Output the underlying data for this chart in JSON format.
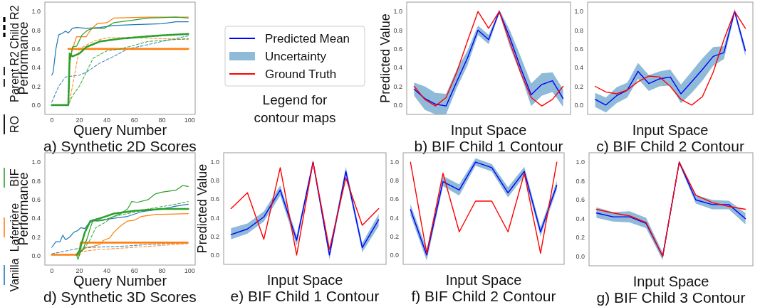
{
  "chart_data": [
    {
      "type": "line",
      "title": "a) Synthetic 2D Scores",
      "xlabel": "Query Number",
      "ylabel": "Performance",
      "xlim": [
        -5,
        104
      ],
      "ylim": [
        -0.1,
        1.1
      ],
      "xticks": [
        0,
        20,
        40,
        60,
        80,
        100
      ],
      "yticks": [
        {
          "value": 0,
          "label": "0.0"
        },
        {
          "value": 0.2,
          "label": "0.2"
        },
        {
          "value": 0.4,
          "label": "0.4"
        },
        {
          "value": 0.6,
          "label": "0.6"
        },
        {
          "value": 0.8,
          "label": "0.8"
        },
        {
          "value": 1,
          "label": "1.0"
        }
      ],
      "annotations": [
        "RO",
        "Parent R2",
        "Child R2"
      ],
      "series": [
        {
          "color": "#1f77b4",
          "line_style": "solid",
          "x": [
            0,
            1,
            3,
            5,
            8,
            10,
            12,
            15,
            18,
            25,
            35,
            45,
            60,
            80,
            90,
            99
          ],
          "values": [
            0.32,
            0.35,
            0.6,
            0.75,
            0.77,
            0.79,
            0.77,
            0.82,
            0.83,
            0.82,
            0.83,
            0.85,
            0.86,
            0.87,
            0.89,
            0.89
          ]
        },
        {
          "color": "#1f77b4",
          "line_style": "dashed",
          "x": [
            0,
            5,
            10,
            20,
            25,
            35,
            45,
            55,
            65,
            80,
            99
          ],
          "values": [
            0.03,
            0.2,
            0.3,
            0.32,
            0.35,
            0.45,
            0.52,
            0.6,
            0.63,
            0.68,
            0.74
          ]
        },
        {
          "color": "#ff7f0e",
          "line_style": "solid",
          "x": [
            0,
            12,
            13,
            15,
            18,
            25,
            28,
            33,
            40,
            45,
            70,
            99
          ],
          "values": [
            0,
            0,
            0.45,
            0.6,
            0.73,
            0.73,
            0.8,
            0.87,
            0.88,
            0.93,
            0.94,
            0.94
          ]
        },
        {
          "color": "#ff7f0e",
          "line_style": "dashed",
          "x": [
            13,
            15,
            20,
            30,
            40,
            60,
            99
          ],
          "values": [
            0.05,
            0.2,
            0.6,
            0.68,
            0.72,
            0.72,
            0.7
          ]
        },
        {
          "color": "#ff7f0e",
          "line_style": "dotted",
          "x": [
            12,
            99
          ],
          "values": [
            0.6,
            0.6
          ]
        },
        {
          "color": "#2ca02c",
          "line_style": "solid",
          "x": [
            0,
            12,
            13,
            15,
            18,
            22,
            26,
            30,
            38,
            45,
            55,
            70,
            90,
            99
          ],
          "values": [
            0,
            0,
            0.45,
            0.62,
            0.63,
            0.75,
            0.8,
            0.82,
            0.82,
            0.88,
            0.9,
            0.93,
            0.94,
            0.93
          ]
        },
        {
          "color": "#2ca02c",
          "line_style": "dashed",
          "x": [
            0,
            12,
            15,
            20,
            25,
            30,
            40,
            50,
            70,
            99
          ],
          "values": [
            0,
            0,
            0.1,
            0.2,
            0.35,
            0.5,
            0.58,
            0.6,
            0.68,
            0.71
          ]
        },
        {
          "color": "#2ca02c",
          "line_style": "dotted",
          "x": [
            0,
            12,
            13,
            15,
            20,
            25,
            35,
            50,
            75,
            99
          ],
          "values": [
            0,
            0,
            0.55,
            0.52,
            0.55,
            0.62,
            0.68,
            0.71,
            0.74,
            0.76
          ]
        }
      ]
    },
    {
      "type": "line",
      "title": "b) BIF Child 1 Contour",
      "xlabel": "Input Space",
      "ylabel": "Predicted Value",
      "legend": "left",
      "annotations": [
        "Uncertainty",
        "Legend for contour maps"
      ],
      "tick_labels": "y",
      "ylim": [
        -0.1,
        1.1
      ],
      "yticks": [
        {
          "value": 0,
          "label": "0.0"
        },
        {
          "value": 0.2,
          "label": "0.2"
        },
        {
          "value": 0.4,
          "label": "0.4"
        },
        {
          "value": 0.6,
          "label": "0.6"
        },
        {
          "value": 0.8,
          "label": "0.8"
        },
        {
          "value": 1,
          "label": "1.0"
        }
      ],
      "categories": [
        null,
        null,
        null,
        null,
        null,
        null,
        null,
        null,
        null,
        null,
        null,
        null,
        null,
        null,
        null
      ],
      "series": [
        {
          "name": "Predicted Mean",
          "color": "#0000ff",
          "values": [
            0.17,
            0.07,
            0.01,
            -0.01,
            0.25,
            0.5,
            0.8,
            0.7,
            1.0,
            0.72,
            0.4,
            0.11,
            0.22,
            0.26,
            0.07
          ],
          "lower": [
            0.1,
            -0.05,
            -0.1,
            -0.1,
            0.18,
            0.42,
            0.75,
            0.65,
            0.98,
            0.62,
            0.33,
            -0.01,
            0.1,
            0.14,
            -0.02
          ],
          "upper": [
            0.24,
            0.2,
            0.13,
            0.12,
            0.38,
            0.58,
            0.85,
            0.75,
            1.02,
            0.8,
            0.52,
            0.23,
            0.34,
            0.35,
            0.17
          ]
        },
        {
          "name": "Ground Truth",
          "color": "#ff0000",
          "values": [
            0.2,
            0.06,
            -0.01,
            0.08,
            0.35,
            0.68,
            1.0,
            0.82,
            1.0,
            0.67,
            0.35,
            0.08,
            -0.01,
            0.06,
            0.2
          ]
        }
      ]
    },
    {
      "type": "line",
      "title": "c) BIF Child 2 Contour",
      "xlabel": "Input Space",
      "tick_labels": "y",
      "ylim": [
        -0.1,
        1.1
      ],
      "yticks": [
        {
          "value": 0,
          "label": "0.0"
        },
        {
          "value": 0.2,
          "label": "0.2"
        },
        {
          "value": 0.4,
          "label": "0.4"
        },
        {
          "value": 0.6,
          "label": "0.6"
        },
        {
          "value": 0.8,
          "label": "0.8"
        },
        {
          "value": 1,
          "label": "1.0"
        }
      ],
      "categories": [
        null,
        null,
        null,
        null,
        null,
        null,
        null,
        null,
        null,
        null,
        null,
        null,
        null,
        null,
        null
      ],
      "series": [
        {
          "color": "#0000ff",
          "values": [
            0.06,
            0.0,
            0.1,
            0.16,
            0.36,
            0.23,
            0.28,
            0.3,
            0.12,
            0.25,
            0.38,
            0.52,
            0.56,
            1.0,
            0.58
          ],
          "lower": [
            -0.02,
            -0.08,
            0.02,
            0.08,
            0.28,
            0.15,
            0.2,
            0.21,
            0.02,
            0.13,
            0.26,
            0.42,
            0.49,
            0.97,
            0.52
          ],
          "upper": [
            0.13,
            0.08,
            0.19,
            0.24,
            0.45,
            0.32,
            0.36,
            0.38,
            0.22,
            0.36,
            0.5,
            0.62,
            0.63,
            1.03,
            0.62
          ]
        },
        {
          "color": "#ff0000",
          "values": [
            0.2,
            0.14,
            0.12,
            0.16,
            0.25,
            0.31,
            0.3,
            0.2,
            0.06,
            0.0,
            0.09,
            0.35,
            0.7,
            1.0,
            0.82
          ]
        }
      ]
    },
    {
      "type": "line",
      "title": "d) Synthetic 3D Scores",
      "xlabel": "Query Number",
      "ylabel": "Performance",
      "xlim": [
        -5,
        104
      ],
      "ylim": [
        -0.1,
        1.1
      ],
      "xticks": [
        0,
        20,
        40,
        60,
        80,
        100
      ],
      "yticks": [
        {
          "value": 0,
          "label": "0.0"
        },
        {
          "value": 0.2,
          "label": "0.2"
        },
        {
          "value": 0.4,
          "label": "0.4"
        },
        {
          "value": 0.6,
          "label": "0.6"
        },
        {
          "value": 0.8,
          "label": "0.8"
        },
        {
          "value": 1,
          "label": "1.0"
        }
      ],
      "annotations": [
        "Vanilla",
        "Laferrière",
        "BIF"
      ],
      "series": [
        {
          "color": "#1f77b4",
          "line_style": "solid",
          "x": [
            0,
            3,
            6,
            8,
            10,
            13,
            16,
            19,
            21,
            24,
            27,
            30,
            35,
            45,
            55,
            65,
            80,
            90,
            99
          ],
          "values": [
            0.09,
            0.15,
            0.15,
            0.22,
            0.17,
            0.2,
            0.25,
            0.27,
            0.3,
            0.29,
            0.35,
            0.37,
            0.38,
            0.4,
            0.42,
            0.47,
            0.5,
            0.53,
            0.55
          ]
        },
        {
          "color": "#1f77b4",
          "line_style": "dashed",
          "x": [
            0,
            10,
            20,
            30,
            50,
            70,
            99
          ],
          "values": [
            0.02,
            0.05,
            0.08,
            0.09,
            0.1,
            0.12,
            0.14
          ]
        },
        {
          "color": "#ff7f0e",
          "line_style": "solid",
          "x": [
            0,
            20,
            21,
            25,
            30,
            35,
            37,
            42,
            45,
            50,
            55,
            60,
            65,
            75,
            99
          ],
          "values": [
            0.01,
            0.01,
            0.04,
            0.09,
            0.1,
            0.12,
            0.16,
            0.19,
            0.25,
            0.32,
            0.37,
            0.38,
            0.42,
            0.44,
            0.45
          ]
        },
        {
          "color": "#ff7f0e",
          "line_style": "dashed",
          "x": [
            20,
            30,
            40,
            60,
            80,
            99
          ],
          "values": [
            0.04,
            0.06,
            0.07,
            0.09,
            0.11,
            0.13
          ]
        },
        {
          "color": "#ff7f0e",
          "line_style": "dotted",
          "x": [
            0,
            20,
            21,
            99
          ],
          "values": [
            0.01,
            0.01,
            0.14,
            0.14
          ]
        },
        {
          "color": "#2ca02c",
          "line_style": "solid",
          "x": [
            18,
            19,
            21,
            23,
            26,
            28,
            30,
            33,
            38,
            45,
            50,
            55,
            58,
            62,
            70,
            75,
            80,
            90,
            95,
            99
          ],
          "values": [
            0.01,
            -0.04,
            0.05,
            0.08,
            0.2,
            0.3,
            0.38,
            0.37,
            0.38,
            0.42,
            0.45,
            0.5,
            0.58,
            0.57,
            0.6,
            0.66,
            0.68,
            0.7,
            0.75,
            0.74
          ]
        },
        {
          "color": "#2ca02c",
          "line_style": "dashed",
          "x": [
            18,
            22,
            27,
            32,
            38,
            45,
            55,
            70,
            90,
            99
          ],
          "values": [
            0.01,
            0.05,
            0.15,
            0.3,
            0.35,
            0.42,
            0.45,
            0.5,
            0.55,
            0.58
          ]
        },
        {
          "color": "#2ca02c",
          "line_style": "dotted",
          "x": [
            18,
            20,
            24,
            28,
            35,
            45,
            60,
            80,
            99
          ],
          "values": [
            0.01,
            0.05,
            0.25,
            0.37,
            0.4,
            0.45,
            0.48,
            0.5,
            0.5
          ]
        }
      ]
    },
    {
      "type": "line",
      "title": "e) BIF Child 1 Contour",
      "xlabel": "Input Space",
      "ylabel": "Predicted Value",
      "tick_labels": "y",
      "ylim": [
        -0.1,
        1.1
      ],
      "yticks": [
        {
          "value": 0,
          "label": "0.0"
        },
        {
          "value": 0.2,
          "label": "0.2"
        },
        {
          "value": 0.4,
          "label": "0.4"
        },
        {
          "value": 0.6,
          "label": "0.6"
        },
        {
          "value": 0.8,
          "label": "0.8"
        },
        {
          "value": 1,
          "label": "1.0"
        }
      ],
      "categories": [
        null,
        null,
        null,
        null,
        null,
        null,
        null,
        null,
        null,
        null
      ],
      "series": [
        {
          "color": "#0000ff",
          "values": [
            0.22,
            0.28,
            0.41,
            0.7,
            0.16,
            1.0,
            0.0,
            0.9,
            0.08,
            0.38
          ],
          "lower": [
            0.17,
            0.23,
            0.36,
            0.64,
            0.1,
            0.97,
            -0.05,
            0.85,
            0.03,
            0.31
          ],
          "upper": [
            0.29,
            0.34,
            0.47,
            0.75,
            0.21,
            1.03,
            0.05,
            0.95,
            0.13,
            0.44
          ]
        },
        {
          "color": "#ff0000",
          "values": [
            0.5,
            0.67,
            0.17,
            0.94,
            0.0,
            1.0,
            0.06,
            0.83,
            0.32,
            0.5
          ]
        }
      ]
    },
    {
      "type": "line",
      "title": "f) BIF Child 2 Contour",
      "xlabel": "Input Space",
      "tick_labels": "y",
      "ylim": [
        -0.1,
        1.1
      ],
      "yticks": [
        {
          "value": 0,
          "label": "0.0"
        },
        {
          "value": 0.2,
          "label": "0.2"
        },
        {
          "value": 0.4,
          "label": "0.4"
        },
        {
          "value": 0.6,
          "label": "0.6"
        },
        {
          "value": 0.8,
          "label": "0.8"
        },
        {
          "value": 1,
          "label": "1.0"
        }
      ],
      "categories": [
        null,
        null,
        null,
        null,
        null,
        null,
        null,
        null,
        null,
        null
      ],
      "series": [
        {
          "color": "#0000ff",
          "values": [
            0.49,
            0.0,
            0.79,
            0.7,
            1.0,
            0.94,
            0.67,
            0.9,
            0.25,
            0.75
          ],
          "lower": [
            0.43,
            -0.06,
            0.74,
            0.64,
            0.96,
            0.9,
            0.62,
            0.85,
            0.2,
            0.7
          ],
          "upper": [
            0.55,
            0.06,
            0.85,
            0.76,
            1.04,
            0.98,
            0.73,
            0.95,
            0.3,
            0.8
          ]
        },
        {
          "color": "#ff0000",
          "values": [
            1.0,
            0.02,
            0.88,
            0.25,
            0.58,
            0.58,
            0.25,
            0.88,
            0.02,
            1.0
          ]
        }
      ]
    },
    {
      "type": "line",
      "title": "g) BIF Child 3 Contour",
      "xlabel": "Input Space",
      "tick_labels": "y",
      "ylim": [
        -0.1,
        1.1
      ],
      "yticks": [
        {
          "value": 0,
          "label": "0.0"
        },
        {
          "value": 0.2,
          "label": "0.2"
        },
        {
          "value": 0.4,
          "label": "0.4"
        },
        {
          "value": 0.6,
          "label": "0.6"
        },
        {
          "value": 0.8,
          "label": "0.8"
        },
        {
          "value": 1,
          "label": "1.0"
        }
      ],
      "categories": [
        null,
        null,
        null,
        null,
        null,
        null,
        null,
        null,
        null,
        null
      ],
      "series": [
        {
          "color": "#0000ff",
          "values": [
            0.46,
            0.42,
            0.42,
            0.35,
            0.0,
            1.0,
            0.6,
            0.55,
            0.55,
            0.4
          ],
          "lower": [
            0.41,
            0.37,
            0.36,
            0.3,
            -0.04,
            0.98,
            0.56,
            0.5,
            0.5,
            0.34
          ],
          "upper": [
            0.52,
            0.47,
            0.48,
            0.41,
            0.04,
            1.02,
            0.65,
            0.6,
            0.59,
            0.46
          ]
        },
        {
          "color": "#ff0000",
          "values": [
            0.5,
            0.46,
            0.43,
            0.36,
            0.0,
            1.0,
            0.65,
            0.57,
            0.53,
            0.5
          ]
        }
      ]
    }
  ]
}
